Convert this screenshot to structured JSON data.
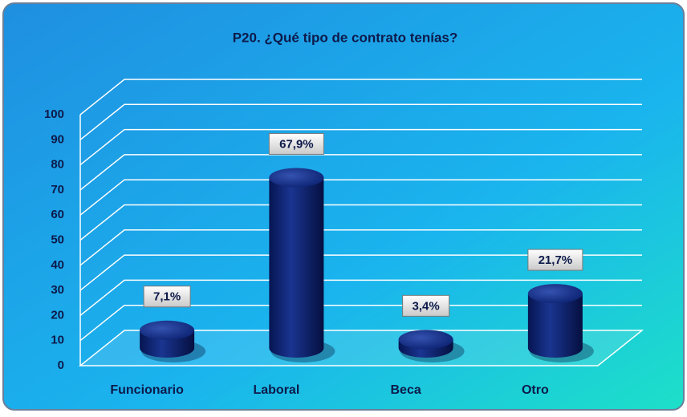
{
  "chart_data": {
    "type": "bar3d",
    "title": "P20. ¿Qué tipo de contrato tenías?",
    "categories": [
      "Funcionario",
      "Laboral",
      "Beca",
      "Otro"
    ],
    "values": [
      7.1,
      67.9,
      3.4,
      21.7
    ],
    "value_labels": [
      "7,1%",
      "67,9%",
      "3,4%",
      "21,7%"
    ],
    "color": "#0b2170",
    "ylim": [
      0,
      100
    ],
    "yticks": [
      0,
      10,
      20,
      30,
      40,
      50,
      60,
      70,
      80,
      90,
      100
    ],
    "grid": true
  }
}
